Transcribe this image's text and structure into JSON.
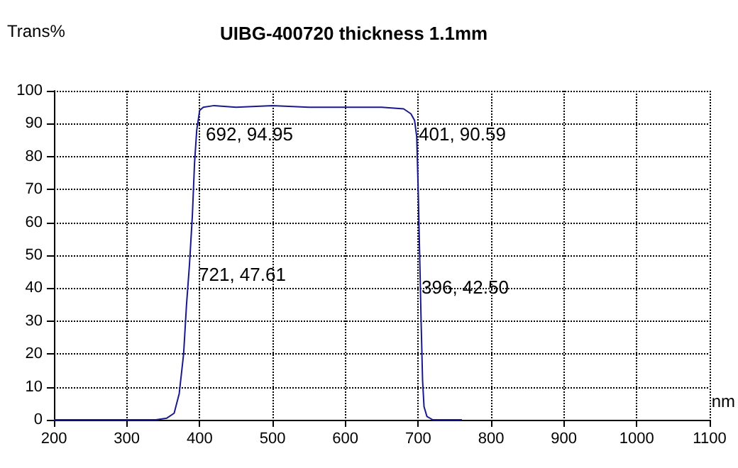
{
  "chart_data": {
    "type": "line",
    "title": "UIBG-400720 thickness 1.1mm",
    "ylabel": "Trans%",
    "xlabel": "nm",
    "annotations": [
      "692, 94.95",
      "401, 90.59",
      "721, 47.61",
      "396, 42.50"
    ],
    "series": [
      {
        "color": "#1a1a8c",
        "x": [
          200,
          300,
          340,
          355,
          365,
          372,
          378,
          382,
          386,
          390,
          393,
          396,
          400,
          405,
          420,
          450,
          500,
          550,
          600,
          650,
          680,
          690,
          695,
          698,
          700,
          702,
          704,
          706,
          708,
          712,
          720,
          740,
          760
        ],
        "values": [
          0,
          0,
          0,
          0.5,
          2,
          8,
          20,
          35,
          47,
          62,
          78,
          88,
          94,
          95,
          95.5,
          95,
          95.5,
          95,
          95,
          95,
          94.5,
          93,
          91,
          86,
          70,
          50,
          30,
          12,
          4,
          1,
          0,
          0,
          0
        ]
      }
    ],
    "xlim": [
      200,
      1100
    ],
    "xticks": [
      200,
      300,
      400,
      500,
      600,
      700,
      800,
      900,
      1000,
      1100
    ],
    "ylim": [
      0,
      100
    ],
    "yticks": [
      0,
      10,
      20,
      30,
      40,
      50,
      60,
      70,
      80,
      90,
      100
    ],
    "grid": true,
    "marker": "none",
    "line_style": "solid"
  }
}
